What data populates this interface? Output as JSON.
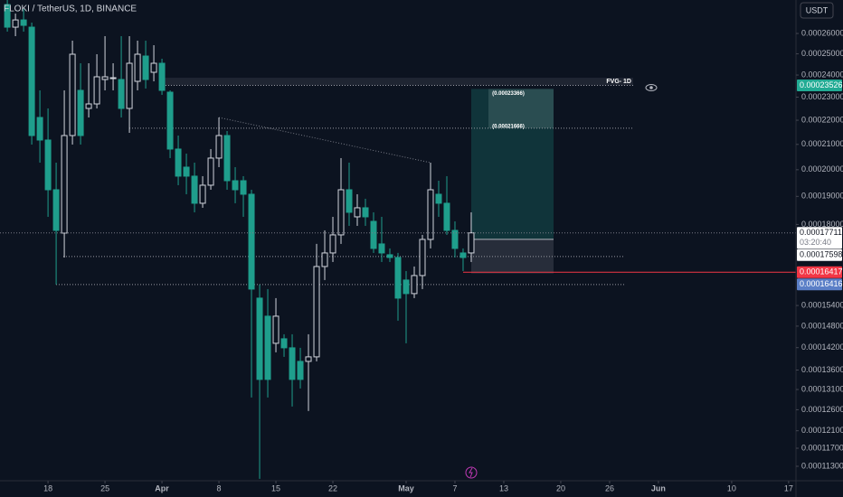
{
  "chart_data": {
    "type": "candlestick",
    "title": "FLOKI / TetherUS, 1D, BINANCE",
    "currency": "USDT",
    "log": true,
    "up_color": "#d1d4dc",
    "down_color": "#1f9e8c",
    "x": [
      0,
      1,
      2,
      3,
      4,
      5,
      6,
      7,
      8,
      9,
      10,
      11,
      12,
      13,
      14,
      15,
      16,
      17,
      18,
      19,
      20,
      21,
      22,
      23,
      24,
      25,
      26,
      27,
      28,
      29,
      30,
      31,
      32,
      33,
      34,
      35,
      36,
      37,
      38,
      39,
      40,
      41,
      42,
      43,
      44,
      45,
      46,
      47,
      48,
      49,
      50,
      51,
      52,
      53,
      54,
      55,
      56,
      57
    ],
    "open": [
      0.0002749,
      0.00026318,
      0.00026686,
      0.00026318,
      0.00022117,
      0.00021177,
      0.00019244,
      0.00017703,
      0.00021361,
      0.00023302,
      0.00022505,
      0.00022702,
      0.00023794,
      0.00023836,
      0.00023794,
      0.00022505,
      0.00023711,
      0.00024894,
      0.00024127,
      0.0002455,
      0.00023221,
      0.00020812,
      0.000201,
      0.00019754,
      0.0001875,
      0.00019413,
      0.00020453,
      0.00021361,
      0.00019582,
      0.00019582,
      0.00019078,
      0.0001562,
      0.00015086,
      0.00014319,
      0.00014444,
      0.00014195,
      0.00013829,
      0.00013829,
      0.0001395,
      0.000166,
      0.00017039,
      0.00017642,
      0.00019244,
      0.00018266,
      0.00018587,
      0.00018108,
      0.00017338,
      0.0001698,
      0.00016891,
      0.00016173,
      0.00015757,
      0.00016314,
      0.00017489,
      0.00019078,
      0.0001875,
      0.00017796,
      0.00017039,
      0.00017039
    ],
    "high": [
      0.0002773,
      0.00027015,
      0.0002725,
      0.00026549,
      0.00023302,
      0.00022505,
      0.00020275,
      0.00023302,
      0.00025642,
      0.0002455,
      0.0002455,
      0.00024981,
      0.00025865,
      0.0002455,
      0.00025865,
      0.00025865,
      0.00025642,
      0.00025642,
      0.00025419,
      0.00024765,
      0.00023302,
      0.00021361,
      0.00020631,
      0.00020275,
      0.00019754,
      0.00020812,
      0.00022117,
      0.00021548,
      0.000201,
      0.00019754,
      0.00019244,
      0.00016033,
      0.00015894,
      0.0001562,
      0.0001457,
      0.0001457,
      0.00014195,
      0.0001457,
      0.00017338,
      0.00017796,
      0.00018266,
      0.00020453,
      0.00020275,
      0.00019078,
      0.00018913,
      0.00018426,
      0.00018266,
      0.00017188,
      0.00017039,
      0.00016456,
      0.000166,
      0.00017642,
      0.00020275,
      0.00019582,
      0.00019754,
      0.00018108,
      0.00017188,
      0.00018426
    ],
    "low": [
      0.00026091,
      0.00025865,
      0.00026091,
      0.00020993,
      0.00020275,
      0.00018266,
      0.00016033,
      0.00016891,
      0.00020993,
      0.00020993,
      0.00022117,
      0.00022505,
      0.00023302,
      0.00023302,
      0.00022117,
      0.00021473,
      0.00023302,
      0.00023384,
      0.00023711,
      0.00023101,
      0.00020453,
      0.00019413,
      0.00019078,
      0.00018426,
      0.00018587,
      0.00019244,
      0.000201,
      0.00019244,
      0.0001875,
      0.00018266,
      0.000129,
      0.00011031,
      0.000129,
      0.00014072,
      0.0001395,
      0.00012678,
      0.00013126,
      0.00012569,
      0.00013829,
      0.00016173,
      0.00016745,
      0.00017338,
      0.00017951,
      0.00017951,
      0.00017951,
      0.00017039,
      0.00016745,
      0.00016745,
      0.00014956,
      0.00014319,
      0.0001562,
      0.00015894,
      0.00017188,
      0.00018266,
      0.00017642,
      0.00016891,
      0.00016456,
      0.00016745
    ],
    "close": [
      0.00026318,
      0.00026686,
      0.0002641,
      0.00021361,
      0.00021177,
      0.00019244,
      0.00017796,
      0.00021361,
      0.00024981,
      0.00021361,
      0.00022702,
      0.00023919,
      0.00023919,
      0.00023877,
      0.00022505,
      0.0002455,
      0.00024981,
      0.00023794,
      0.0002455,
      0.00023302,
      0.00020812,
      0.00019754,
      0.00019754,
      0.0001875,
      0.00019413,
      0.00020453,
      0.00021361,
      0.00019582,
      0.00019244,
      0.00019078,
      0.00015894,
      0.00013357,
      0.00013357,
      0.00015086,
      0.00014195,
      0.00013357,
      0.00013357,
      0.0001395,
      0.000166,
      0.00017039,
      0.00017642,
      0.00019244,
      0.00018426,
      0.00018587,
      0.00018266,
      0.00017188,
      0.00017039,
      0.00016891,
      0.0001562,
      0.00015757,
      0.00016314,
      0.00017489,
      0.00019244,
      0.0001875,
      0.00017796,
      0.00017188,
      0.00016891,
      0.00017711
    ],
    "xlim": [
      -0.9,
      96.9
    ],
    "xticks": [
      {
        "value": 5,
        "label": "18"
      },
      {
        "value": 12,
        "label": "25"
      },
      {
        "value": 19,
        "label": "Apr"
      },
      {
        "value": 26,
        "label": "8"
      },
      {
        "value": 33,
        "label": "15"
      },
      {
        "value": 40,
        "label": "22"
      },
      {
        "value": 49,
        "label": "May"
      },
      {
        "value": 55,
        "label": "7"
      },
      {
        "value": 61,
        "label": "13"
      },
      {
        "value": 68,
        "label": "20"
      },
      {
        "value": 74,
        "label": "26"
      },
      {
        "value": 80,
        "label": "Jun"
      },
      {
        "value": 89,
        "label": "10"
      },
      {
        "value": 96,
        "label": "17"
      }
    ],
    "ylim": [
      0.0001099,
      0.0002773
    ],
    "yticks": [
      {
        "value": 0.00026,
        "label": "0.00026000"
      },
      {
        "value": 0.00025,
        "label": "0.00025000"
      },
      {
        "value": 0.00024,
        "label": "0.00024000"
      },
      {
        "value": 0.00023,
        "label": "0.00023000"
      },
      {
        "value": 0.00022,
        "label": "0.00022000"
      },
      {
        "value": 0.00021,
        "label": "0.00021000"
      },
      {
        "value": 0.0002,
        "label": "0.00020000"
      },
      {
        "value": 0.00019,
        "label": "0.00019000"
      },
      {
        "value": 0.00018,
        "label": "0.00018000"
      },
      {
        "value": 0.000154,
        "label": "0.00015400"
      },
      {
        "value": 0.000148,
        "label": "0.00014800"
      },
      {
        "value": 0.000142,
        "label": "0.00014200"
      },
      {
        "value": 0.000136,
        "label": "0.00013600"
      },
      {
        "value": 0.000131,
        "label": "0.00013100"
      },
      {
        "value": 0.000126,
        "label": "0.00012600"
      },
      {
        "value": 0.000121,
        "label": "0.00012100"
      },
      {
        "value": 0.000117,
        "label": "0.00011700"
      },
      {
        "value": 0.000113,
        "label": "0.00011300"
      }
    ],
    "price_labels": [
      {
        "value": 0.00023526,
        "label": "0.00023526",
        "color": "#22ab94",
        "text_color": "#ffffff"
      },
      {
        "value": 0.00017711,
        "label": "0.00017711",
        "color": "#ffffff",
        "text_color": "#131722"
      },
      {
        "value": 0.00017598,
        "label": "0.00017598",
        "color": "#ffffff",
        "text_color": "#131722"
      },
      {
        "value": 0.00016417,
        "label": "0.00016417",
        "color": "#f23645",
        "text_color": "#ffffff"
      },
      {
        "value": 0.00016416,
        "label": "0.00016416",
        "color": "#5b7fc7",
        "text_color": "#ffffff"
      }
    ],
    "countdown": "03:20:40",
    "fvg": {
      "label": "FVG- 1D",
      "top": 0.00023876,
      "bottom": 0.00023526
    },
    "levels": [
      0.00016921,
      0.00016033
    ],
    "trend_line": [
      0.00022117,
      0.00020275
    ],
    "position": {
      "target": {
        "value": 0.00023366,
        "label": "(0.00023366)"
      },
      "mid": {
        "value": 0.00021666,
        "label": "(0.00021666)"
      },
      "entry": 0.0001749,
      "stop": 0.0001638
    }
  }
}
